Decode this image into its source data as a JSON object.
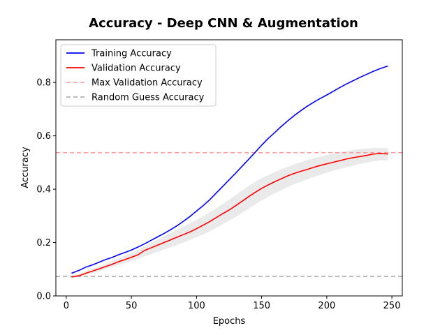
{
  "chart_data": {
    "type": "line",
    "title": "Accuracy - Deep CNN & Augmentation",
    "xlabel": "Epochs",
    "ylabel": "Accuracy",
    "xlim": [
      -8,
      258
    ],
    "ylim": [
      0.0,
      0.96
    ],
    "xticks": [
      0,
      50,
      100,
      150,
      200,
      250
    ],
    "yticks": [
      0.0,
      0.2,
      0.4,
      0.6,
      0.8
    ],
    "xtick_labels": [
      "0",
      "50",
      "100",
      "150",
      "200",
      "250"
    ],
    "ytick_labels": [
      "0.0",
      "0.2",
      "0.4",
      "0.6",
      "0.8"
    ],
    "grid": false,
    "legend_position": "top-left",
    "series": [
      {
        "name": "Training Accuracy",
        "color": "#0000ff",
        "style": "solid",
        "x": [
          4,
          10,
          15,
          20,
          25,
          30,
          35,
          40,
          45,
          50,
          55,
          60,
          65,
          70,
          75,
          80,
          85,
          90,
          95,
          100,
          105,
          110,
          115,
          120,
          125,
          130,
          135,
          140,
          145,
          150,
          155,
          160,
          165,
          170,
          175,
          180,
          185,
          190,
          195,
          200,
          205,
          210,
          215,
          220,
          225,
          230,
          235,
          240,
          247
        ],
        "y": [
          0.085,
          0.096,
          0.108,
          0.116,
          0.126,
          0.136,
          0.144,
          0.154,
          0.163,
          0.172,
          0.183,
          0.195,
          0.208,
          0.221,
          0.234,
          0.248,
          0.263,
          0.28,
          0.298,
          0.318,
          0.338,
          0.36,
          0.385,
          0.41,
          0.435,
          0.46,
          0.486,
          0.512,
          0.538,
          0.565,
          0.59,
          0.612,
          0.635,
          0.656,
          0.676,
          0.694,
          0.711,
          0.726,
          0.74,
          0.753,
          0.767,
          0.781,
          0.794,
          0.806,
          0.818,
          0.829,
          0.84,
          0.85,
          0.862
        ]
      },
      {
        "name": "Validation Accuracy",
        "color": "#ff0000",
        "style": "solid",
        "x": [
          4,
          10,
          15,
          20,
          25,
          30,
          35,
          40,
          45,
          50,
          55,
          60,
          65,
          70,
          75,
          80,
          85,
          90,
          95,
          100,
          105,
          110,
          115,
          120,
          125,
          130,
          135,
          140,
          145,
          150,
          155,
          160,
          165,
          170,
          175,
          180,
          185,
          190,
          195,
          200,
          205,
          210,
          215,
          220,
          225,
          230,
          235,
          240,
          247
        ],
        "y": [
          0.071,
          0.076,
          0.085,
          0.093,
          0.101,
          0.11,
          0.118,
          0.128,
          0.136,
          0.145,
          0.154,
          0.17,
          0.18,
          0.19,
          0.2,
          0.21,
          0.22,
          0.23,
          0.24,
          0.252,
          0.265,
          0.278,
          0.293,
          0.308,
          0.322,
          0.338,
          0.355,
          0.372,
          0.388,
          0.403,
          0.416,
          0.428,
          0.439,
          0.45,
          0.459,
          0.467,
          0.474,
          0.482,
          0.489,
          0.495,
          0.501,
          0.507,
          0.513,
          0.518,
          0.522,
          0.526,
          0.531,
          0.534,
          0.532
        ],
        "band_low": [
          0.066,
          0.07,
          0.078,
          0.086,
          0.093,
          0.101,
          0.108,
          0.116,
          0.123,
          0.131,
          0.139,
          0.148,
          0.156,
          0.165,
          0.174,
          0.182,
          0.191,
          0.2,
          0.21,
          0.22,
          0.23,
          0.242,
          0.255,
          0.268,
          0.282,
          0.296,
          0.311,
          0.327,
          0.343,
          0.358,
          0.371,
          0.384,
          0.396,
          0.408,
          0.419,
          0.428,
          0.437,
          0.446,
          0.454,
          0.462,
          0.469,
          0.476,
          0.482,
          0.488,
          0.494,
          0.499,
          0.504,
          0.508,
          0.508
        ],
        "band_high": [
          0.076,
          0.082,
          0.092,
          0.101,
          0.11,
          0.12,
          0.13,
          0.141,
          0.151,
          0.161,
          0.172,
          0.185,
          0.198,
          0.211,
          0.223,
          0.236,
          0.248,
          0.26,
          0.272,
          0.285,
          0.298,
          0.313,
          0.328,
          0.344,
          0.361,
          0.378,
          0.395,
          0.412,
          0.428,
          0.441,
          0.453,
          0.464,
          0.474,
          0.484,
          0.493,
          0.501,
          0.509,
          0.516,
          0.522,
          0.528,
          0.533,
          0.538,
          0.543,
          0.547,
          0.55,
          0.552,
          0.554,
          0.555,
          0.554
        ]
      },
      {
        "name": "Max Validation Accuracy",
        "color": "#ff9c9c",
        "style": "dashed",
        "y_const": 0.537
      },
      {
        "name": "Random Guess Accuracy",
        "color": "#a6a6a6",
        "style": "dashed",
        "y_const": 0.073
      }
    ]
  }
}
